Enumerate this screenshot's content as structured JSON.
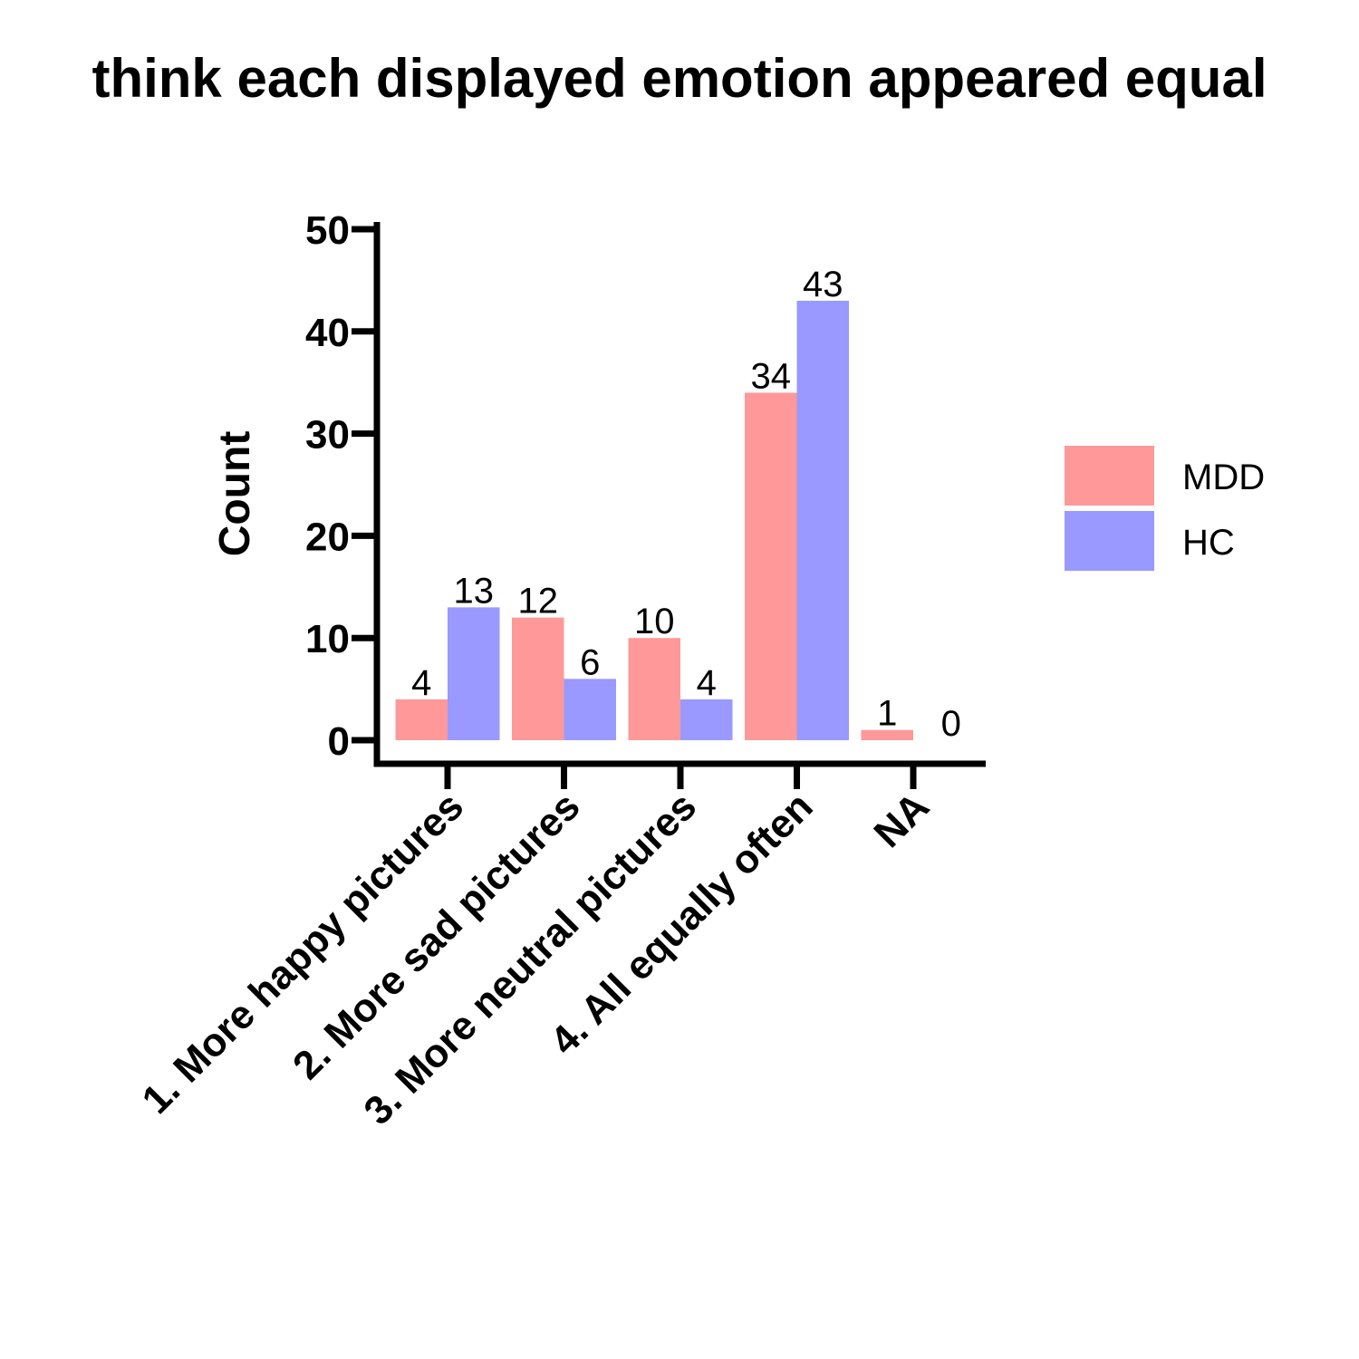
{
  "chart_data": {
    "type": "bar",
    "title": "think each displayed emotion appeared equal",
    "xlabel": "",
    "ylabel": "Count",
    "ylim": [
      0,
      50
    ],
    "yticks": [
      0,
      10,
      20,
      30,
      40,
      50
    ],
    "categories": [
      "1. More happy pictures",
      "2. More sad pictures",
      "3. More neutral pictures",
      "4. All equally often",
      "NA"
    ],
    "series": [
      {
        "name": "MDD",
        "values": [
          4,
          12,
          10,
          34,
          1
        ],
        "color": "#FF9999"
      },
      {
        "name": "HC",
        "values": [
          13,
          6,
          4,
          43,
          0
        ],
        "color": "#9999FF"
      }
    ],
    "data_labels": true,
    "legend": "right",
    "grid": false
  }
}
